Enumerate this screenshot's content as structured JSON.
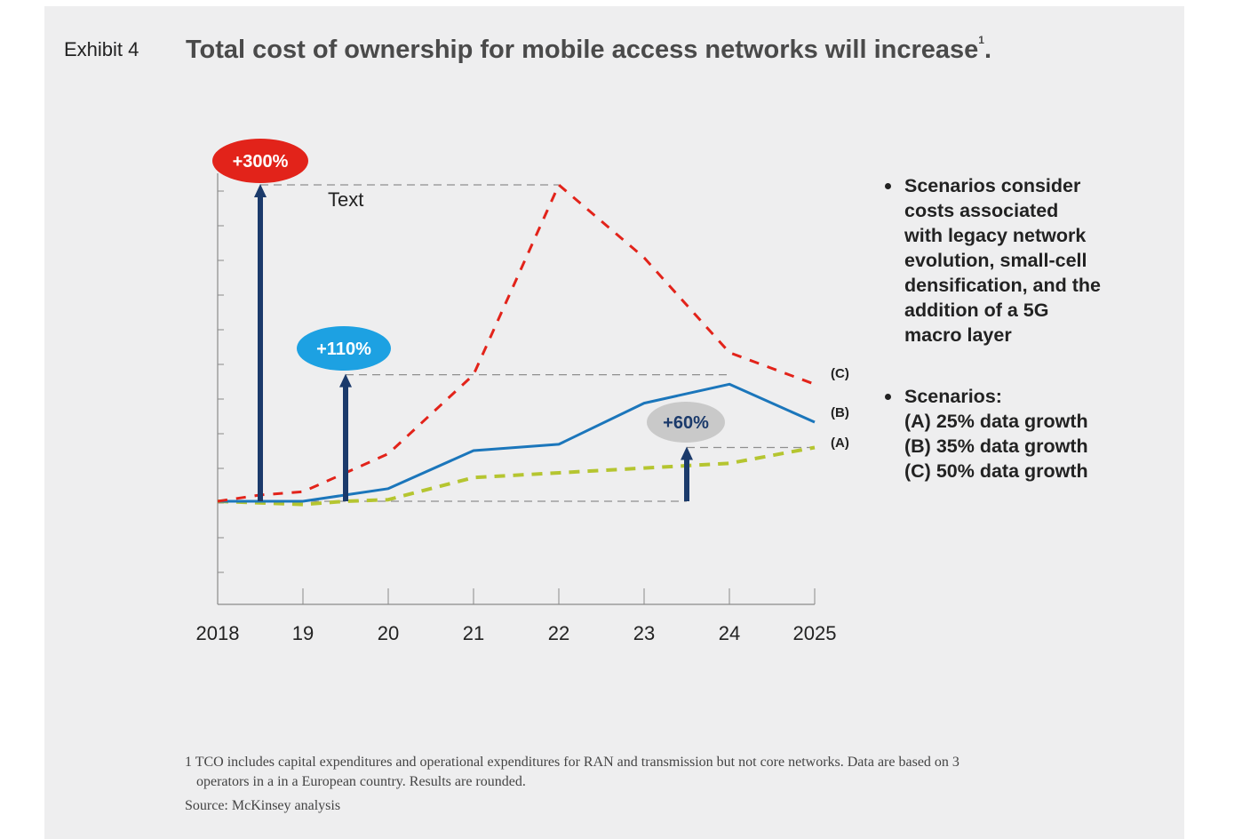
{
  "exhibit_label": "Exhibit 4",
  "title": {
    "text": "Total cost of ownership for mobile access networks will increase",
    "footnote_marker": "1",
    "end_punct": "."
  },
  "notes": {
    "bullet1": [
      "Scenarios consider",
      "costs associated",
      "with legacy network",
      "evolution, small-cell",
      "densification, and the",
      "addition of a 5G",
      "macro layer"
    ],
    "bullet2": [
      "Scenarios:",
      "(A) 25% data growth",
      "(B) 35% data growth",
      "(C) 50% data growth"
    ]
  },
  "footnote": {
    "line1": "1 TCO includes capital expenditures and operational expenditures for RAN and transmission but not core networks. Data are based on 3",
    "line2": "operators in a in a European country. Results are rounded."
  },
  "source": "Source: McKinsey analysis",
  "chart_data": {
    "type": "line",
    "x": [
      2018,
      2019,
      2020,
      2021,
      2022,
      2023,
      2024,
      2025
    ],
    "x_tick_labels": [
      "2018",
      "19",
      "20",
      "21",
      "22",
      "23",
      "24",
      "2025"
    ],
    "xlim": [
      2018,
      2025
    ],
    "ylim": [
      -30,
      100
    ],
    "y_axis_labels": false,
    "baseline": 0,
    "annotation_text": "Text",
    "series": [
      {
        "name": "(A)",
        "style": "dashed",
        "color": "#b5c530",
        "x": [
          2018,
          2019,
          2019.5,
          2020,
          2021,
          2022,
          2023,
          2024,
          2025
        ],
        "y": [
          0,
          -1,
          0,
          0.5,
          7.5,
          9,
          10.5,
          12,
          17
        ]
      },
      {
        "name": "(B)",
        "style": "solid",
        "color": "#1b76bb",
        "x": [
          2018,
          2019,
          2019.5,
          2020,
          2021,
          2022,
          2023,
          2024,
          2025
        ],
        "y": [
          0,
          0,
          2,
          4,
          16,
          18,
          31,
          37,
          25
        ]
      },
      {
        "name": "(C)",
        "style": "dashed",
        "color": "#e2231a",
        "x": [
          2018,
          2018.5,
          2019,
          2019.5,
          2020,
          2021,
          2022,
          2023,
          2024,
          2025
        ],
        "y": [
          0,
          2,
          3,
          9,
          15,
          40,
          100,
          77,
          47,
          37
        ]
      }
    ],
    "annotations": [
      {
        "label": "+300%",
        "x": 2018.5,
        "y_level": 100,
        "bubble_color": "#e2231a",
        "text_color": "#ffffff"
      },
      {
        "label": "+110%",
        "x": 2019.5,
        "y_level": 40,
        "bubble_color": "#1da1e2",
        "text_color": "#ffffff"
      },
      {
        "label": "+60%",
        "x": 2023.5,
        "y_level": 17,
        "bubble_color": "#c9c9c9",
        "text_color": "#1b3a6b"
      }
    ],
    "arrow_color": "#1b3a6b"
  }
}
